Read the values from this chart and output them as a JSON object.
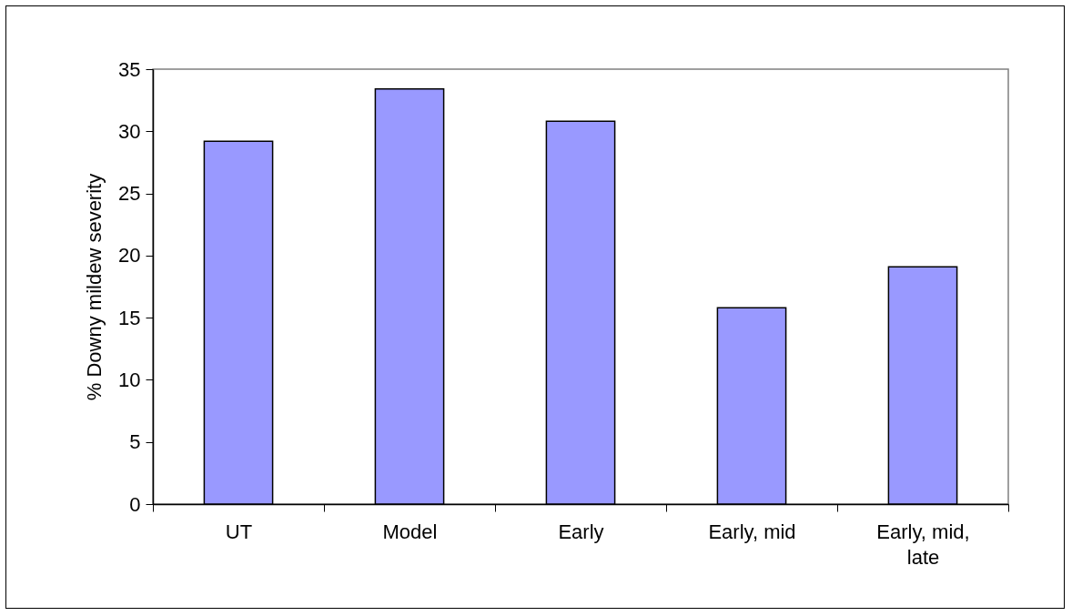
{
  "chart_data": {
    "type": "bar",
    "ylabel": "% Downy mildew severity",
    "categories": [
      "UT",
      "Model",
      "Early",
      "Early, mid",
      "Early, mid, late"
    ],
    "values": [
      29.2,
      33.4,
      30.8,
      15.8,
      19.1
    ],
    "color": "#9999ff",
    "ylim": [
      0,
      35
    ],
    "yticks": [
      0,
      5,
      10,
      15,
      20,
      25,
      30,
      35
    ],
    "grid": false,
    "legend": false
  }
}
